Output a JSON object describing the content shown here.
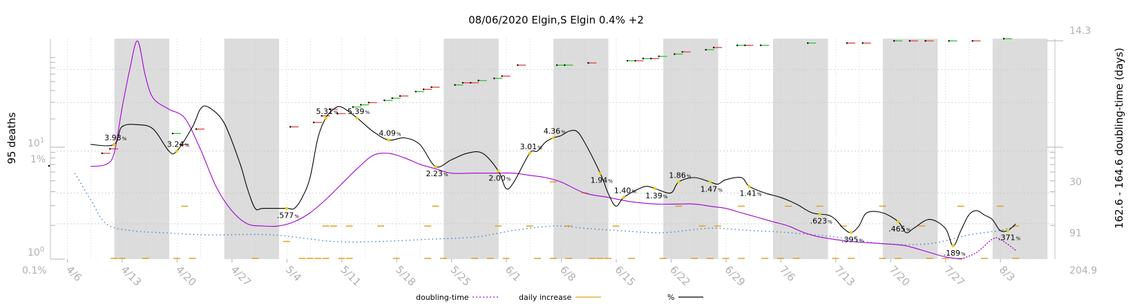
{
  "chart_data": {
    "type": "line",
    "title": "08/06/2020 Elgin,S Elgin 0.4% +2",
    "ylabel_left": "95 deaths",
    "ylabel_right": "162.6 - 164.6 doubling-time (days)",
    "x_tick_labels": [
      "4/6",
      "4/13",
      "4/20",
      "4/27",
      "5/4",
      "5/11",
      "5/18",
      "5/25",
      "6/1",
      "6/8",
      "6/15",
      "6/22",
      "6/29",
      "7/6",
      "7/13",
      "7/20",
      "7/27",
      "8/3"
    ],
    "left_axis_labels": {
      "ten": "10",
      "ten_exp": "1",
      "one": "10",
      "one_exp": "0"
    },
    "pct_axis_labels": {
      "top": "1%",
      "bottom": "0.1%"
    },
    "right_axis_labels": {
      "top": "14.3",
      "mid1": "30",
      "mid2": "91",
      "bottom": "204.9"
    },
    "legend": [
      {
        "label": "doubling-time",
        "color": "#a000d0",
        "style": "dotted"
      },
      {
        "label": "daily increase",
        "color": "#e0a020",
        "style": "solid"
      },
      {
        "label": "%",
        "color": "#000000",
        "style": "solid"
      }
    ],
    "pct_annotations": [
      {
        "day": 6,
        "value": "3.93"
      },
      {
        "day": 14,
        "value": "3.24"
      },
      {
        "day": 28,
        "value": ".577"
      },
      {
        "day": 33,
        "value": "5.31"
      },
      {
        "day": 37,
        "value": "5.39"
      },
      {
        "day": 41,
        "value": "4.09"
      },
      {
        "day": 47,
        "value": "2.23"
      },
      {
        "day": 55,
        "value": "2.00"
      },
      {
        "day": 59,
        "value": "3.01"
      },
      {
        "day": 62,
        "value": "4.36"
      },
      {
        "day": 68,
        "value": "1.94"
      },
      {
        "day": 71,
        "value": "1.40"
      },
      {
        "day": 75,
        "value": "1.39"
      },
      {
        "day": 78,
        "value": "1.86"
      },
      {
        "day": 82,
        "value": "1.47"
      },
      {
        "day": 87,
        "value": "1.41"
      },
      {
        "day": 96,
        "value": ".623"
      },
      {
        "day": 100,
        "value": ".395"
      },
      {
        "day": 106,
        "value": ".465"
      },
      {
        "day": 113,
        "value": ".189"
      },
      {
        "day": 120,
        "value": ".371"
      }
    ],
    "percent_series": [
      [
        3,
        0.52
      ],
      [
        6,
        0.52
      ],
      [
        7,
        0.6
      ],
      [
        9,
        0.61
      ],
      [
        11,
        0.59
      ],
      [
        13,
        0.49
      ],
      [
        14,
        0.49
      ],
      [
        16,
        0.6
      ],
      [
        17,
        0.68
      ],
      [
        18,
        0.69
      ],
      [
        20,
        0.62
      ],
      [
        22,
        0.44
      ],
      [
        23,
        0.32
      ],
      [
        24,
        0.23
      ],
      [
        25,
        0.23
      ],
      [
        28,
        0.23
      ],
      [
        29,
        0.23
      ],
      [
        30,
        0.28
      ],
      [
        31,
        0.37
      ],
      [
        32,
        0.55
      ],
      [
        33,
        0.64
      ],
      [
        34,
        0.68
      ],
      [
        35,
        0.69
      ],
      [
        37,
        0.64
      ],
      [
        39,
        0.58
      ],
      [
        41,
        0.54
      ],
      [
        43,
        0.55
      ],
      [
        45,
        0.52
      ],
      [
        47,
        0.42
      ],
      [
        49,
        0.45
      ],
      [
        51,
        0.48
      ],
      [
        53,
        0.48
      ],
      [
        55,
        0.4
      ],
      [
        56,
        0.32
      ],
      [
        57,
        0.35
      ],
      [
        59,
        0.48
      ],
      [
        60,
        0.49
      ],
      [
        61,
        0.53
      ],
      [
        62,
        0.55
      ],
      [
        63,
        0.56
      ],
      [
        64,
        0.58
      ],
      [
        65,
        0.58
      ],
      [
        66,
        0.53
      ],
      [
        68,
        0.39
      ],
      [
        69,
        0.3
      ],
      [
        70,
        0.24
      ],
      [
        71,
        0.28
      ],
      [
        73,
        0.32
      ],
      [
        74,
        0.33
      ],
      [
        75,
        0.32
      ],
      [
        77,
        0.3
      ],
      [
        78,
        0.35
      ],
      [
        80,
        0.37
      ],
      [
        82,
        0.35
      ],
      [
        83,
        0.34
      ],
      [
        84,
        0.36
      ],
      [
        86,
        0.37
      ],
      [
        87,
        0.33
      ],
      [
        89,
        0.3
      ],
      [
        91,
        0.28
      ],
      [
        93,
        0.25
      ],
      [
        95,
        0.21
      ],
      [
        97,
        0.2
      ],
      [
        98,
        0.18
      ],
      [
        99,
        0.14
      ],
      [
        100,
        0.12
      ],
      [
        101,
        0.15
      ],
      [
        102,
        0.21
      ],
      [
        104,
        0.21
      ],
      [
        106,
        0.17
      ],
      [
        107,
        0.12
      ],
      [
        108,
        0.14
      ],
      [
        110,
        0.18
      ],
      [
        112,
        0.14
      ],
      [
        113,
        0.06
      ],
      [
        114,
        0.13
      ],
      [
        115,
        0.2
      ],
      [
        116,
        0.22
      ],
      [
        117,
        0.2
      ],
      [
        118,
        0.18
      ],
      [
        119,
        0.13
      ],
      [
        120,
        0.13
      ],
      [
        121,
        0.16
      ]
    ],
    "doubling_series": [
      [
        3,
        0.42
      ],
      [
        5,
        0.43
      ],
      [
        6,
        0.48
      ],
      [
        7,
        0.68
      ],
      [
        8,
        0.86
      ],
      [
        9,
        0.99
      ],
      [
        10,
        0.83
      ],
      [
        11,
        0.73
      ],
      [
        13,
        0.68
      ],
      [
        15,
        0.64
      ],
      [
        17,
        0.5
      ],
      [
        19,
        0.33
      ],
      [
        21,
        0.22
      ],
      [
        23,
        0.16
      ],
      [
        25,
        0.15
      ],
      [
        27,
        0.15
      ],
      [
        29,
        0.17
      ],
      [
        31,
        0.21
      ],
      [
        33,
        0.27
      ],
      [
        35,
        0.34
      ],
      [
        37,
        0.41
      ],
      [
        39,
        0.47
      ],
      [
        41,
        0.48
      ],
      [
        43,
        0.46
      ],
      [
        45,
        0.43
      ],
      [
        47,
        0.41
      ],
      [
        49,
        0.39
      ],
      [
        52,
        0.39
      ],
      [
        55,
        0.39
      ],
      [
        57,
        0.39
      ],
      [
        59,
        0.38
      ],
      [
        61,
        0.37
      ],
      [
        63,
        0.35
      ],
      [
        66,
        0.3
      ],
      [
        69,
        0.28
      ],
      [
        72,
        0.26
      ],
      [
        75,
        0.25
      ],
      [
        78,
        0.25
      ],
      [
        80,
        0.25
      ],
      [
        82,
        0.24
      ],
      [
        84,
        0.23
      ],
      [
        86,
        0.21
      ],
      [
        88,
        0.19
      ],
      [
        90,
        0.17
      ],
      [
        92,
        0.15
      ],
      [
        94,
        0.12
      ],
      [
        96,
        0.1
      ],
      [
        100,
        0.08
      ],
      [
        104,
        0.07
      ],
      [
        107,
        0.06
      ],
      [
        110,
        0.03
      ],
      [
        112,
        0.01
      ],
      [
        114,
        0.0
      ],
      [
        116,
        0.03
      ],
      [
        118,
        0.09
      ],
      [
        119,
        0.09
      ],
      [
        121,
        0.04
      ]
    ],
    "trend_series": [
      [
        1,
        0.39
      ],
      [
        3,
        0.27
      ],
      [
        5,
        0.16
      ],
      [
        8,
        0.13
      ],
      [
        12,
        0.12
      ],
      [
        18,
        0.11
      ],
      [
        26,
        0.11
      ],
      [
        34,
        0.08
      ],
      [
        40,
        0.08
      ],
      [
        46,
        0.09
      ],
      [
        52,
        0.1
      ],
      [
        57,
        0.13
      ],
      [
        62,
        0.15
      ],
      [
        66,
        0.14
      ],
      [
        70,
        0.13
      ],
      [
        76,
        0.12
      ],
      [
        82,
        0.14
      ],
      [
        87,
        0.13
      ],
      [
        92,
        0.12
      ],
      [
        98,
        0.1
      ],
      [
        104,
        0.07
      ],
      [
        110,
        0.07
      ],
      [
        115,
        0.11
      ],
      [
        119,
        0.13
      ],
      [
        121,
        0.15
      ]
    ],
    "weekend_shading_starts": [
      6,
      20,
      48,
      62,
      76,
      90,
      104,
      118
    ],
    "ylim_log": [
      1,
      14.3
    ]
  }
}
